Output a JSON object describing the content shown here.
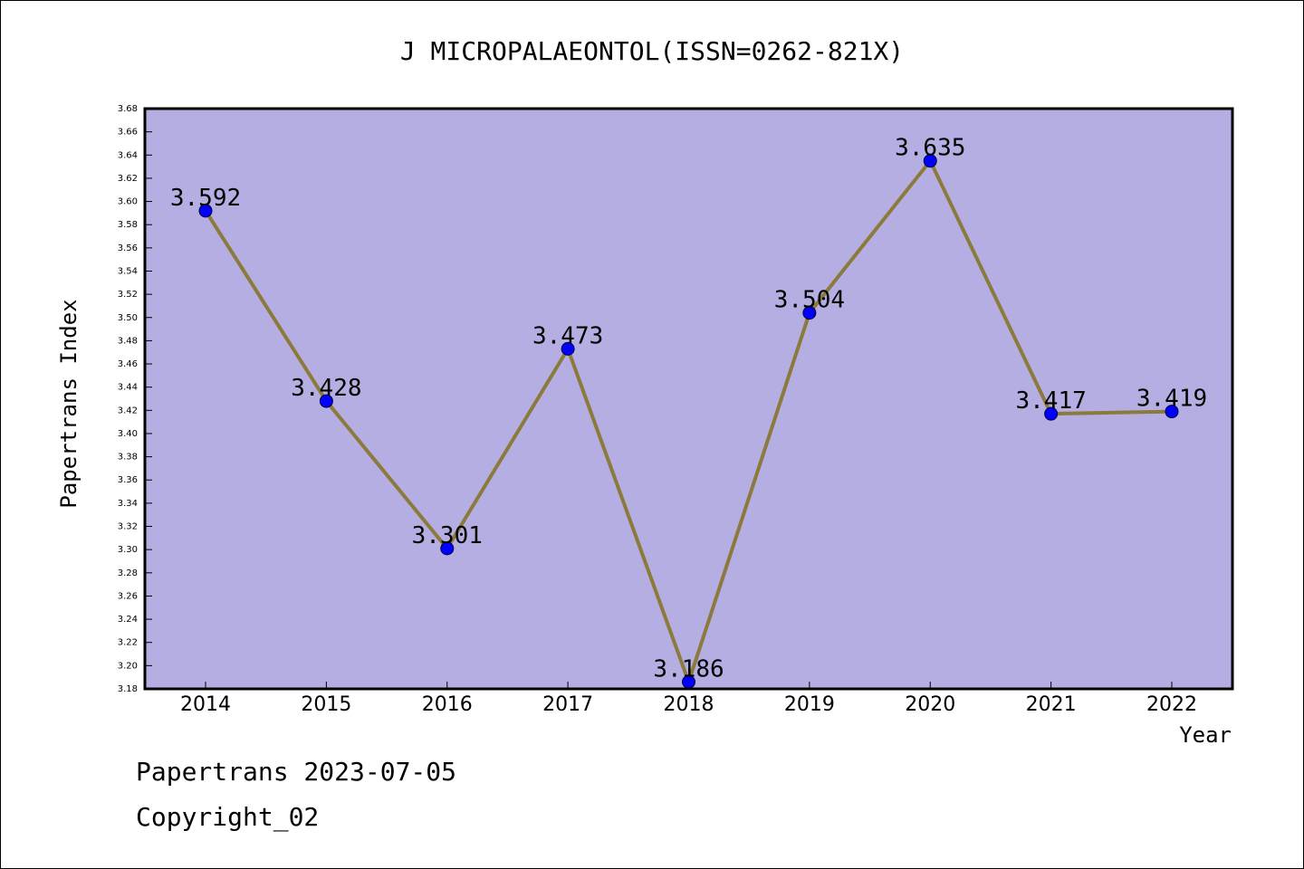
{
  "chart_data": {
    "type": "line",
    "title": "J MICROPALAEONTOL(ISSN=0262-821X)",
    "xlabel": "Year",
    "ylabel": "Papertrans Index",
    "categories": [
      "2014",
      "2015",
      "2016",
      "2017",
      "2018",
      "2019",
      "2020",
      "2021",
      "2022"
    ],
    "values": [
      3.592,
      3.428,
      3.301,
      3.473,
      3.186,
      3.504,
      3.635,
      3.417,
      3.419
    ],
    "data_labels": [
      "3.592",
      "3.428",
      "3.301",
      "3.473",
      "3.186",
      "3.504",
      "3.635",
      "3.417",
      "3.419"
    ],
    "ylim": [
      3.18,
      3.68
    ],
    "ytick_step": 0.02,
    "grid": false,
    "colors": {
      "plot_background": "#b4aee2",
      "line": "#8c7a3c",
      "marker": "#0000ff"
    }
  },
  "footer": {
    "date_line": "Papertrans 2023-07-05",
    "copyright_line": "Copyright_02"
  }
}
